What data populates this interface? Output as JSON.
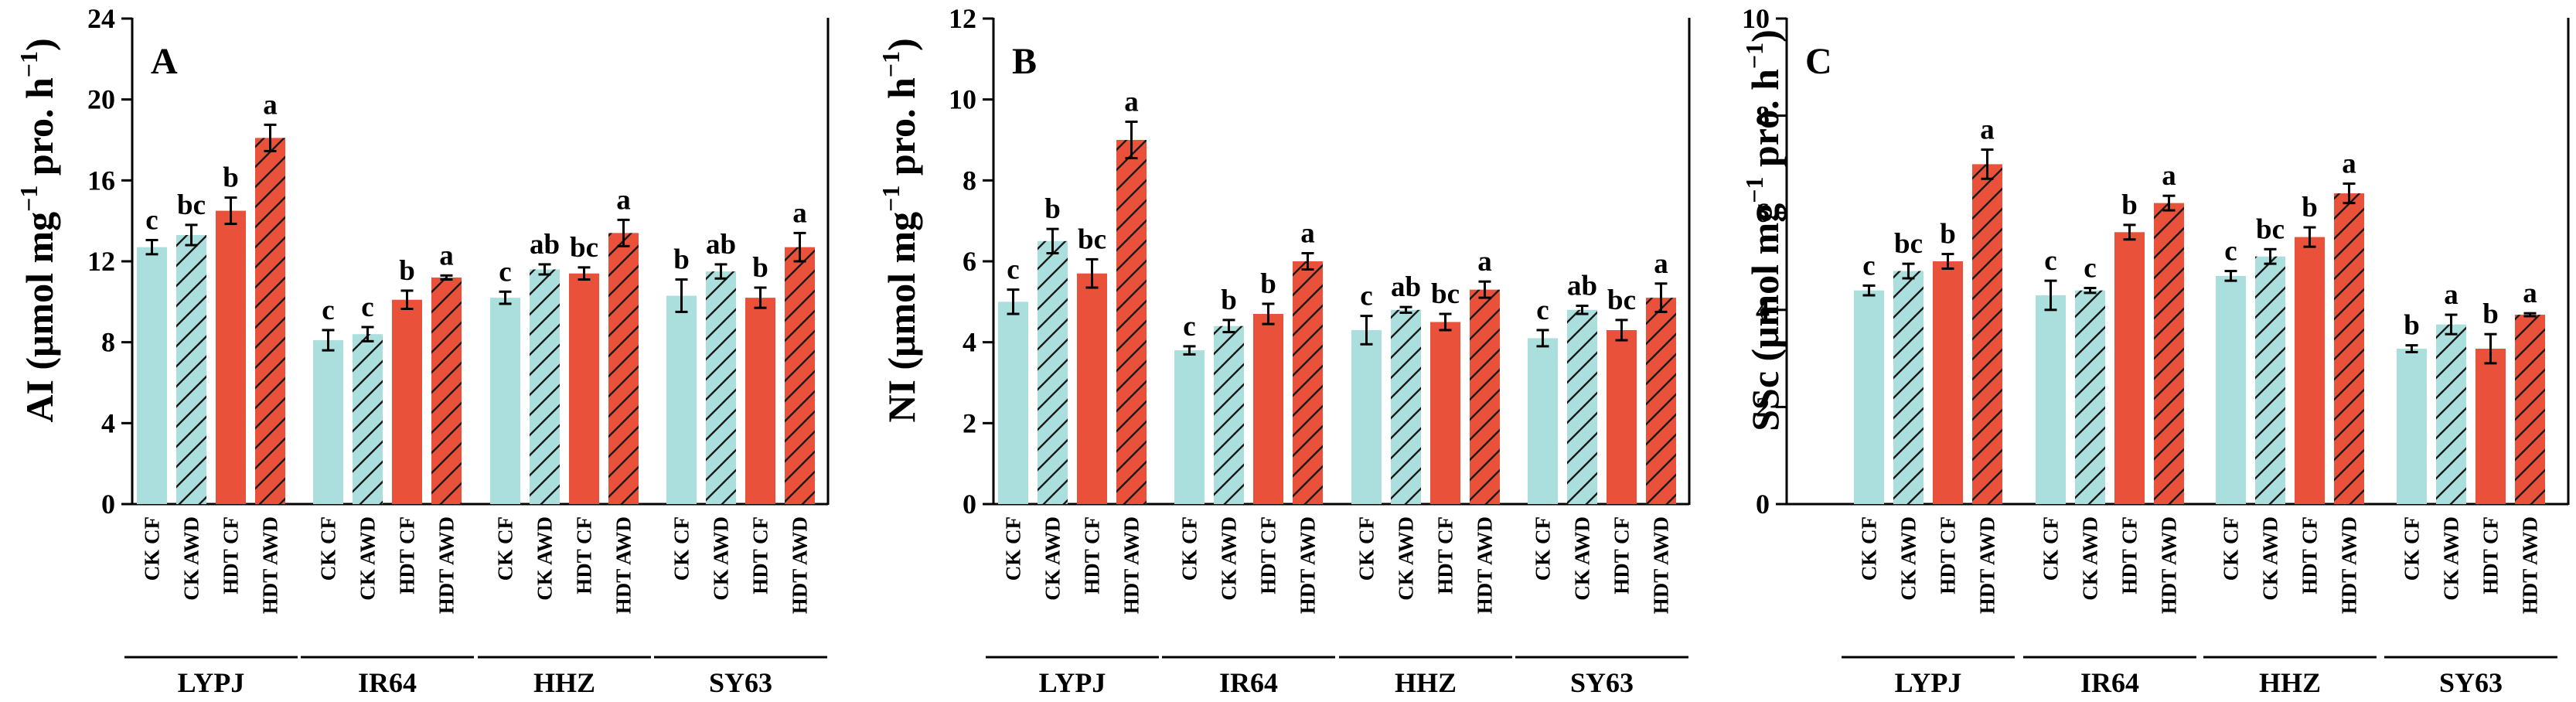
{
  "colors": {
    "cf_ck": "#abdfdd",
    "cf_hdt": "#e9513a",
    "hatch": "#1a1a1a",
    "axis": "#000000"
  },
  "chart_data": [
    {
      "type": "bar",
      "panel": "A",
      "title": "",
      "ylabel_main": "AI (μmol mg",
      "ylabel_sup": "−1",
      "ylabel_mid": " pro. h",
      "ylabel_end": ")",
      "ylim": [
        0,
        24
      ],
      "yticks": [
        "0",
        "4",
        "8",
        "12",
        "16",
        "20",
        "24"
      ],
      "groups": [
        "LYPJ",
        "IR64",
        "HHZ",
        "SY63"
      ],
      "categories": [
        "CK CF",
        "CK AWD",
        "HDT CF",
        "HDT AWD"
      ],
      "series": [
        {
          "name": "CK CF",
          "values": [
            12.7,
            8.1,
            10.2,
            10.3
          ],
          "errors": [
            0.35,
            0.5,
            0.3,
            0.8
          ],
          "letters": [
            "c",
            "c",
            "c",
            "b"
          ]
        },
        {
          "name": "CK AWD",
          "values": [
            13.3,
            8.4,
            11.6,
            11.5
          ],
          "errors": [
            0.5,
            0.35,
            0.25,
            0.35
          ],
          "letters": [
            "bc",
            "c",
            "ab",
            "ab"
          ]
        },
        {
          "name": "HDT CF",
          "values": [
            14.5,
            10.1,
            11.4,
            10.2
          ],
          "errors": [
            0.65,
            0.45,
            0.3,
            0.5
          ],
          "letters": [
            "b",
            "b",
            "bc",
            "b"
          ]
        },
        {
          "name": "HDT AWD",
          "values": [
            18.1,
            11.2,
            13.4,
            12.7
          ],
          "errors": [
            0.65,
            0.1,
            0.65,
            0.7
          ],
          "letters": [
            "a",
            "a",
            "a",
            "a"
          ]
        }
      ]
    },
    {
      "type": "bar",
      "panel": "B",
      "title": "",
      "ylabel_main": "NI (μmol mg",
      "ylabel_sup": "−1",
      "ylabel_mid": " pro. h",
      "ylabel_end": ")",
      "ylim": [
        0,
        12
      ],
      "yticks": [
        "0",
        "2",
        "4",
        "6",
        "8",
        "10",
        "12"
      ],
      "groups": [
        "LYPJ",
        "IR64",
        "HHZ",
        "SY63"
      ],
      "categories": [
        "CK CF",
        "CK AWD",
        "HDT CF",
        "HDT AWD"
      ],
      "series": [
        {
          "name": "CK CF",
          "values": [
            5.0,
            3.8,
            4.3,
            4.1
          ],
          "errors": [
            0.3,
            0.1,
            0.35,
            0.2
          ],
          "letters": [
            "c",
            "c",
            "c",
            "c"
          ]
        },
        {
          "name": "CK AWD",
          "values": [
            6.5,
            4.4,
            4.8,
            4.8
          ],
          "errors": [
            0.3,
            0.15,
            0.07,
            0.1
          ],
          "letters": [
            "b",
            "b",
            "ab",
            "ab"
          ]
        },
        {
          "name": "HDT CF",
          "values": [
            5.7,
            4.7,
            4.5,
            4.3
          ],
          "errors": [
            0.35,
            0.25,
            0.2,
            0.25
          ],
          "letters": [
            "bc",
            "b",
            "bc",
            "bc"
          ]
        },
        {
          "name": "HDT AWD",
          "values": [
            9.0,
            6.0,
            5.3,
            5.1
          ],
          "errors": [
            0.45,
            0.2,
            0.2,
            0.35
          ],
          "letters": [
            "a",
            "a",
            "a",
            "a"
          ]
        }
      ]
    },
    {
      "type": "bar",
      "panel": "C",
      "title": "",
      "ylabel_main": "SSc (μmol mg",
      "ylabel_sup": "−1",
      "ylabel_mid": " pro. h",
      "ylabel_end": ")",
      "ylim": [
        0,
        10
      ],
      "yticks": [
        "0",
        "2",
        "4",
        "6",
        "8",
        "10"
      ],
      "groups": [
        "LYPJ",
        "IR64",
        "HHZ",
        "SY63"
      ],
      "categories": [
        "CK CF",
        "CK AWD",
        "HDT CF",
        "HDT AWD"
      ],
      "series": [
        {
          "name": "CK CF",
          "values": [
            4.4,
            4.3,
            4.7,
            3.2
          ],
          "errors": [
            0.1,
            0.3,
            0.1,
            0.07
          ],
          "letters": [
            "c",
            "c",
            "c",
            "b"
          ]
        },
        {
          "name": "CK AWD",
          "values": [
            4.8,
            4.4,
            5.1,
            3.7
          ],
          "errors": [
            0.15,
            0.05,
            0.15,
            0.2
          ],
          "letters": [
            "bc",
            "c",
            "bc",
            "a"
          ]
        },
        {
          "name": "HDT CF",
          "values": [
            5.0,
            5.6,
            5.5,
            3.2
          ],
          "errors": [
            0.15,
            0.15,
            0.2,
            0.3
          ],
          "letters": [
            "b",
            "b",
            "b",
            "b"
          ]
        },
        {
          "name": "HDT AWD",
          "values": [
            7.0,
            6.2,
            6.4,
            3.9
          ],
          "errors": [
            0.3,
            0.15,
            0.2,
            0.03
          ],
          "letters": [
            "a",
            "a",
            "a",
            "a"
          ]
        }
      ]
    }
  ]
}
